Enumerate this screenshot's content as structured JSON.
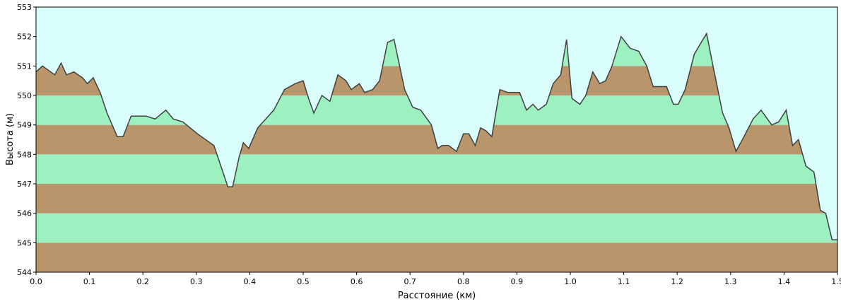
{
  "chart_data": {
    "type": "area",
    "title": "",
    "xlabel": "Расстояние  (км)",
    "ylabel": "Высота (м)",
    "xlim": [
      0,
      1.5
    ],
    "ylim": [
      544,
      553
    ],
    "x_ticks": [
      0.0,
      0.1,
      0.2,
      0.3,
      0.4,
      0.5,
      0.6,
      0.7,
      0.8,
      0.9,
      1.0,
      1.1,
      1.2,
      1.3,
      1.4,
      1.5
    ],
    "x_tick_labels": [
      "0.0",
      "0.1",
      "0.2",
      "0.3",
      "0.4",
      "0.5",
      "0.6",
      "0.7",
      "0.8",
      "0.9",
      "1.0",
      "1.1",
      "1.2",
      "1.3",
      "1.4",
      "1.5"
    ],
    "y_ticks": [
      544,
      545,
      546,
      547,
      548,
      549,
      550,
      551,
      552,
      553
    ],
    "y_tick_labels": [
      "544",
      "545",
      "546",
      "547",
      "548",
      "549",
      "550",
      "551",
      "552",
      "553"
    ],
    "grid": false,
    "colors": {
      "background": "#d8fdfb",
      "band_brown": "#b8956a",
      "band_green": "#9df0c0",
      "line": "#404040",
      "frame": "#000000"
    },
    "series": [
      {
        "x": [
          0.0,
          0.012,
          0.035,
          0.047,
          0.057,
          0.071,
          0.087,
          0.096,
          0.107,
          0.12,
          0.133,
          0.152,
          0.163,
          0.178,
          0.19,
          0.206,
          0.223,
          0.243,
          0.257,
          0.275,
          0.302,
          0.333,
          0.359,
          0.368,
          0.38,
          0.388,
          0.398,
          0.415,
          0.43,
          0.445,
          0.465,
          0.485,
          0.5,
          0.51,
          0.52,
          0.535,
          0.55,
          0.565,
          0.58,
          0.59,
          0.605,
          0.615,
          0.63,
          0.643,
          0.658,
          0.67,
          0.69,
          0.705,
          0.72,
          0.74,
          0.752,
          0.76,
          0.772,
          0.787,
          0.8,
          0.81,
          0.822,
          0.832,
          0.842,
          0.853,
          0.868,
          0.883,
          0.905,
          0.918,
          0.93,
          0.94,
          0.955,
          0.968,
          0.982,
          0.993,
          1.003,
          1.018,
          1.029,
          1.042,
          1.055,
          1.066,
          1.078,
          1.095,
          1.112,
          1.128,
          1.143,
          1.155,
          1.165,
          1.18,
          1.193,
          1.202,
          1.215,
          1.232,
          1.245,
          1.255,
          1.267,
          1.285,
          1.297,
          1.31,
          1.325,
          1.342,
          1.357,
          1.365,
          1.377,
          1.39,
          1.404,
          1.416,
          1.427,
          1.441,
          1.456,
          1.468,
          1.478,
          1.49,
          1.5
        ],
        "y": [
          550.8,
          551.0,
          550.7,
          551.1,
          550.7,
          550.8,
          550.6,
          550.4,
          550.6,
          550.1,
          549.4,
          548.6,
          548.6,
          549.3,
          549.3,
          549.3,
          549.2,
          549.5,
          549.2,
          549.1,
          548.7,
          548.3,
          546.9,
          546.9,
          547.9,
          548.4,
          548.2,
          548.9,
          549.2,
          549.5,
          550.2,
          550.4,
          550.5,
          549.9,
          549.4,
          550.0,
          549.8,
          550.7,
          550.5,
          550.2,
          550.4,
          550.1,
          550.2,
          550.5,
          551.8,
          551.9,
          550.2,
          549.6,
          549.5,
          549.0,
          548.2,
          548.3,
          548.3,
          548.1,
          548.7,
          548.7,
          548.3,
          548.9,
          548.8,
          548.6,
          550.2,
          550.1,
          550.1,
          549.5,
          549.7,
          549.5,
          549.7,
          550.4,
          550.7,
          551.9,
          549.9,
          549.7,
          550.0,
          550.8,
          550.4,
          550.5,
          551.0,
          552.0,
          551.6,
          551.5,
          551.0,
          550.3,
          550.3,
          550.3,
          549.7,
          549.7,
          550.2,
          551.4,
          551.8,
          552.1,
          551.0,
          549.4,
          548.9,
          548.1,
          548.6,
          549.2,
          549.5,
          549.3,
          549.0,
          549.1,
          549.5,
          548.3,
          548.5,
          547.6,
          547.4,
          546.1,
          546.0,
          545.1,
          545.1
        ]
      }
    ]
  }
}
